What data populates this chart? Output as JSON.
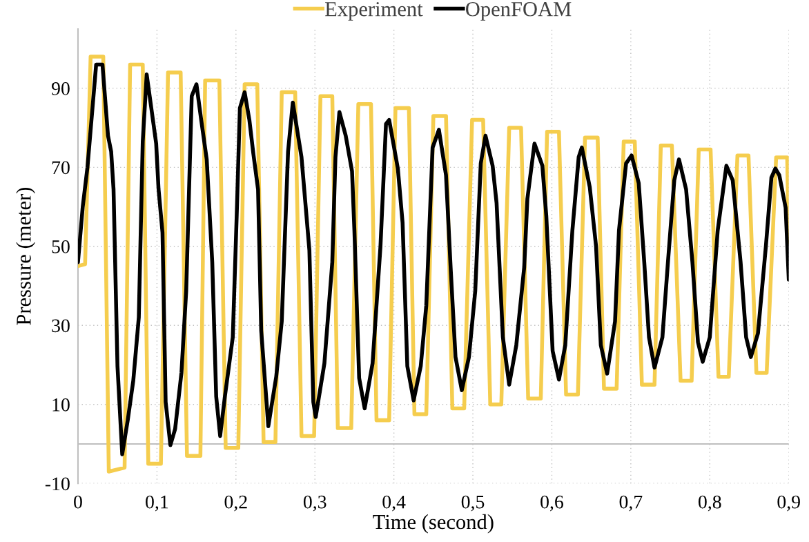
{
  "chart_data": {
    "type": "line",
    "xlabel": "Time (second)",
    "ylabel": "Pressure (meter)",
    "xlim": [
      0,
      0.9
    ],
    "ylim": [
      -10,
      105
    ],
    "xticks": [
      0,
      {
        "value": 0.1,
        "label": "0,1"
      },
      {
        "value": 0.2,
        "label": "0,2"
      },
      {
        "value": 0.3,
        "label": "0,3"
      },
      {
        "value": 0.4,
        "label": "0,4"
      },
      {
        "value": 0.5,
        "label": "0,5"
      },
      {
        "value": 0.6,
        "label": "0,6"
      },
      {
        "value": 0.7,
        "label": "0,7"
      },
      {
        "value": 0.8,
        "label": "0,8"
      },
      {
        "value": 0.9,
        "label": "0,9"
      }
    ],
    "yticks": [
      -10,
      10,
      30,
      50,
      70,
      90
    ],
    "grid": true,
    "legend": "top",
    "marker": "none",
    "line_style": "solid",
    "ref_lines": [
      {
        "axis": "y",
        "value": 0,
        "color": "#bfbfbf"
      }
    ],
    "series": [
      {
        "name": "Experiment",
        "color": "#f5cd4e",
        "x": [
          0,
          0.009,
          0.016,
          0.032,
          0.039,
          0.059,
          0.066,
          0.082,
          0.089,
          0.105,
          0.114,
          0.13,
          0.138,
          0.155,
          0.161,
          0.179,
          0.187,
          0.203,
          0.211,
          0.227,
          0.235,
          0.25,
          0.258,
          0.275,
          0.283,
          0.299,
          0.307,
          0.322,
          0.329,
          0.346,
          0.355,
          0.371,
          0.378,
          0.394,
          0.402,
          0.419,
          0.426,
          0.441,
          0.45,
          0.466,
          0.474,
          0.489,
          0.499,
          0.513,
          0.522,
          0.536,
          0.546,
          0.561,
          0.57,
          0.586,
          0.594,
          0.609,
          0.618,
          0.633,
          0.642,
          0.658,
          0.666,
          0.682,
          0.691,
          0.705,
          0.714,
          0.73,
          0.738,
          0.752,
          0.763,
          0.777,
          0.786,
          0.801,
          0.811,
          0.824,
          0.835,
          0.849,
          0.859,
          0.872,
          0.884,
          0.898,
          0.9
        ],
        "values": [
          45,
          45.5,
          98,
          98,
          -7,
          -6,
          96,
          96,
          -5,
          -5,
          94,
          94,
          -3,
          -3,
          92,
          92,
          -1,
          -1,
          91,
          91,
          0.5,
          0.5,
          89,
          89,
          2,
          2,
          88,
          88,
          4,
          4,
          86,
          86,
          6,
          6,
          85,
          85,
          7.5,
          7.5,
          83,
          83,
          9,
          9,
          82,
          82,
          10,
          10,
          80,
          80,
          11.5,
          11.5,
          79,
          79,
          12.5,
          12.5,
          77.5,
          77.5,
          14,
          14,
          76.5,
          76.5,
          15,
          15,
          75.5,
          75.5,
          16,
          16,
          74.5,
          74.5,
          17,
          17,
          73,
          73,
          18,
          18,
          72.5,
          72.5,
          51
        ]
      },
      {
        "name": "OpenFOAM",
        "color": "#000000",
        "x": [
          0,
          0.006,
          0.012,
          0.023,
          0.031,
          0.038,
          0.042,
          0.045,
          0.05,
          0.056,
          0.063,
          0.07,
          0.077,
          0.082,
          0.087,
          0.099,
          0.102,
          0.107,
          0.111,
          0.117,
          0.123,
          0.131,
          0.137,
          0.144,
          0.15,
          0.156,
          0.163,
          0.17,
          0.175,
          0.18,
          0.186,
          0.196,
          0.201,
          0.205,
          0.211,
          0.217,
          0.222,
          0.228,
          0.232,
          0.241,
          0.251,
          0.258,
          0.266,
          0.272,
          0.283,
          0.293,
          0.298,
          0.301,
          0.312,
          0.322,
          0.326,
          0.331,
          0.339,
          0.347,
          0.35,
          0.356,
          0.363,
          0.373,
          0.383,
          0.39,
          0.394,
          0.405,
          0.411,
          0.417,
          0.425,
          0.434,
          0.441,
          0.449,
          0.457,
          0.466,
          0.472,
          0.478,
          0.486,
          0.495,
          0.503,
          0.51,
          0.516,
          0.525,
          0.53,
          0.538,
          0.546,
          0.555,
          0.565,
          0.569,
          0.578,
          0.588,
          0.593,
          0.601,
          0.609,
          0.617,
          0.626,
          0.634,
          0.638,
          0.648,
          0.656,
          0.662,
          0.67,
          0.68,
          0.685,
          0.694,
          0.701,
          0.71,
          0.717,
          0.723,
          0.73,
          0.74,
          0.747,
          0.755,
          0.761,
          0.77,
          0.778,
          0.785,
          0.791,
          0.8,
          0.81,
          0.821,
          0.829,
          0.839,
          0.846,
          0.852,
          0.861,
          0.871,
          0.878,
          0.883,
          0.888,
          0.896,
          0.9
        ],
        "values": [
          46,
          60,
          70,
          96,
          96,
          78,
          74,
          64.5,
          19.7,
          -2.6,
          6,
          16,
          32,
          76.5,
          93.5,
          76,
          64.5,
          53.5,
          10.6,
          -0.3,
          3.8,
          18,
          38.7,
          88,
          91,
          82,
          72,
          46,
          12,
          2,
          12,
          27,
          58,
          85,
          89,
          82,
          73.5,
          64.4,
          28.7,
          4.5,
          17,
          31,
          74,
          86.4,
          72.6,
          49,
          10.6,
          6.8,
          20.4,
          46,
          72.6,
          84,
          78,
          69,
          54,
          16.7,
          9,
          20.4,
          50,
          81,
          82,
          69.7,
          56,
          19.7,
          11,
          19.7,
          35,
          75,
          79.5,
          68,
          44,
          22,
          13.6,
          22,
          38.7,
          71,
          78,
          70.4,
          61,
          27,
          15,
          25,
          44.7,
          62,
          76,
          70.4,
          57.6,
          23.5,
          16.3,
          25,
          54,
          72.6,
          75,
          65,
          50,
          25,
          17.8,
          31,
          54,
          71,
          73,
          66,
          46,
          27,
          19.3,
          27,
          46,
          66.7,
          72,
          64.4,
          46,
          25.8,
          20.8,
          27,
          54,
          70.4,
          66.7,
          46,
          27,
          22,
          28,
          50,
          67.4,
          69.7,
          68,
          59.8,
          41.6
        ]
      }
    ]
  }
}
